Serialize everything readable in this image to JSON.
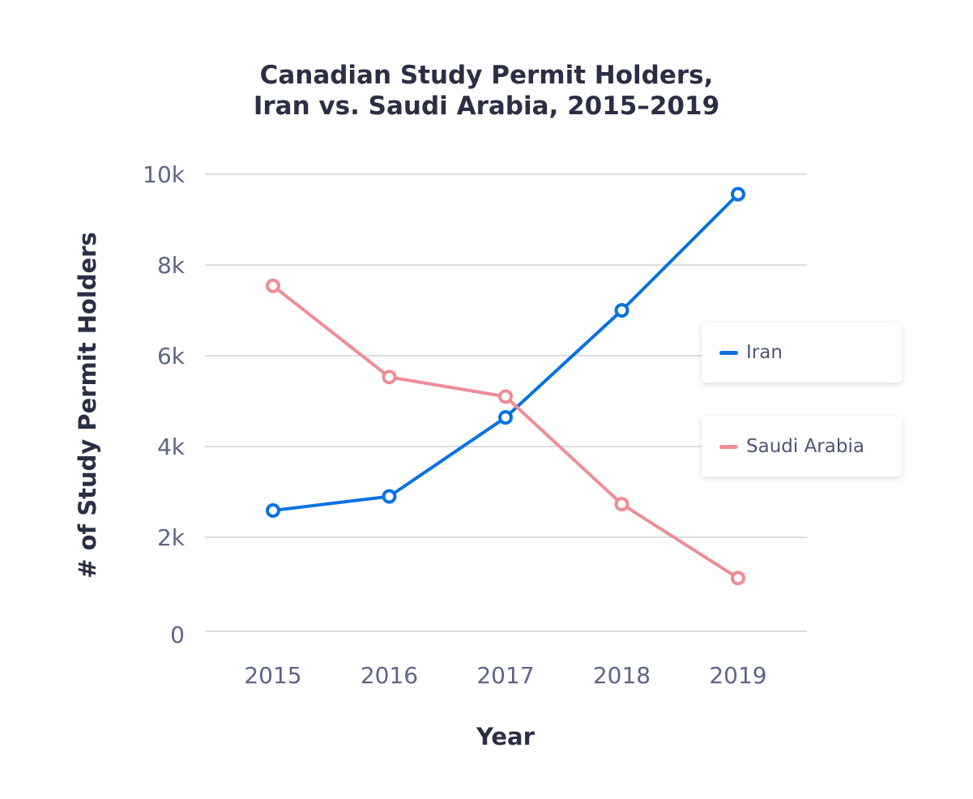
{
  "chart_data": {
    "type": "line",
    "title": [
      "Canadian Study Permit Holders,",
      "Iran vs. Saudi Arabia, 2015–2019"
    ],
    "xlabel": "Year",
    "ylabel": "# of Study Permit Holders",
    "categories": [
      "2015",
      "2016",
      "2017",
      "2018",
      "2019"
    ],
    "ylim": [
      0,
      10000
    ],
    "yticks": [
      0,
      2000,
      4000,
      6000,
      8000,
      10000
    ],
    "ytick_labels": [
      "0",
      "2k",
      "4k",
      "6k",
      "8k",
      "10k"
    ],
    "grid": "horizontal",
    "legend_position": "right",
    "series": [
      {
        "name": "Iran",
        "color": "#0a72e2",
        "values": [
          2590,
          2900,
          4640,
          7000,
          9560
        ]
      },
      {
        "name": "Saudi Arabia",
        "color": "#ef8d96",
        "values": [
          7540,
          5530,
          5100,
          2730,
          1100
        ]
      }
    ]
  }
}
